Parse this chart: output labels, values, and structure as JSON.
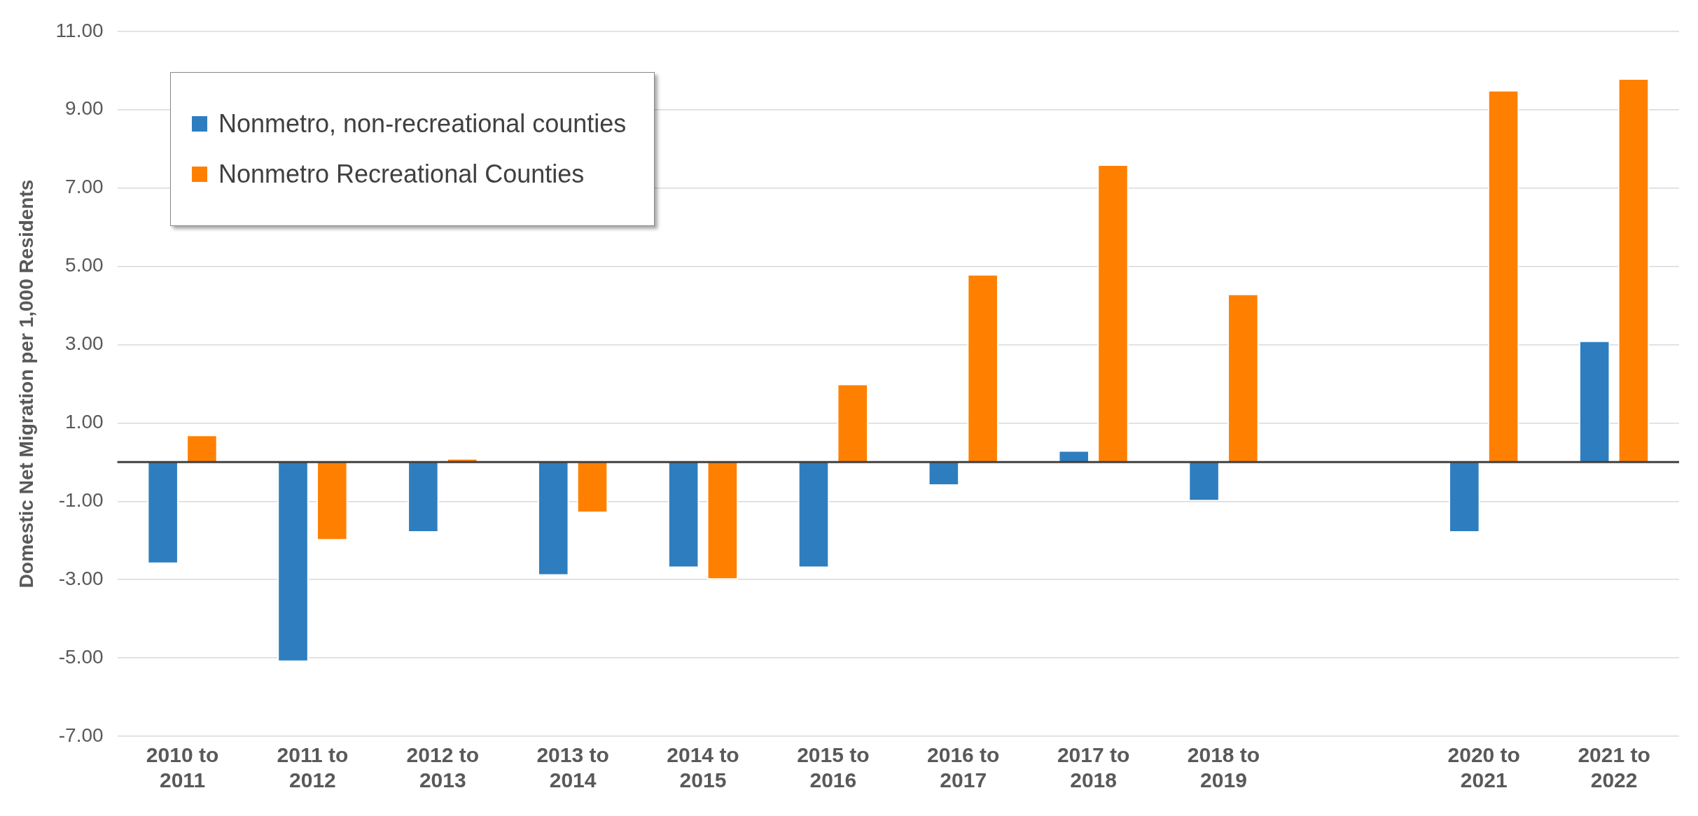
{
  "chart_data": {
    "type": "bar",
    "ylabel": "Domestic Net Migration per 1,000 Residents",
    "categories": [
      "2010 to 2011",
      "2011 to 2012",
      "2012 to 2013",
      "2013 to 2014",
      "2014 to 2015",
      "2015 to 2016",
      "2016 to 2017",
      "2017 to 2018",
      "2018 to 2019",
      null,
      "2020 to 2021",
      "2021 to 2022"
    ],
    "series": [
      {
        "name": "Nonmetro, non-recreational counties",
        "color": "#2e7ebf",
        "values": [
          -2.6,
          -5.1,
          -1.8,
          -2.9,
          -2.7,
          -2.7,
          -0.6,
          0.3,
          -1.0,
          null,
          -1.8,
          3.1
        ]
      },
      {
        "name": "Nonmetro Recreational Counties",
        "color": "#ff8000",
        "values": [
          0.7,
          -2.0,
          0.1,
          -1.3,
          -3.0,
          2.0,
          4.8,
          7.6,
          4.3,
          null,
          9.5,
          9.8
        ]
      }
    ],
    "ylim": [
      -7,
      11
    ],
    "yticks": [
      {
        "value": -7,
        "label": "-7.00"
      },
      {
        "value": -5,
        "label": "-5.00"
      },
      {
        "value": -3,
        "label": "-3.00"
      },
      {
        "value": -1,
        "label": "-1.00"
      },
      {
        "value": 1,
        "label": "1.00"
      },
      {
        "value": 3,
        "label": "3.00"
      },
      {
        "value": 5,
        "label": "5.00"
      },
      {
        "value": 7,
        "label": "7.00"
      },
      {
        "value": 9,
        "label": "9.00"
      },
      {
        "value": 11,
        "label": "11.00"
      }
    ],
    "grid": "y",
    "legend": "top left"
  }
}
